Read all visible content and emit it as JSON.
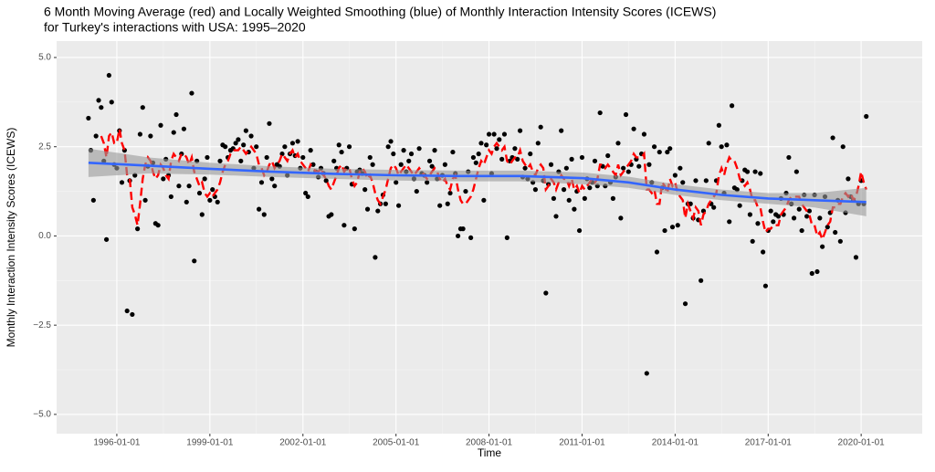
{
  "chart_data": {
    "type": "scatter",
    "title": "6 Month Moving Average (red) and Locally Weighted Smoothing (blue) of Monthly Interaction Intensity Scores (ICEWS)",
    "subtitle": "for Turkey's interactions with USA: 1995–2020",
    "x_label": "Time",
    "y_label": "Monthly Interaction Intensity Scores (ICEWS)",
    "grid": true,
    "xlim": [
      "1994-01-22",
      "2021-12-20"
    ],
    "xticks": [
      "1996-01-01",
      "1999-01-01",
      "2002-01-01",
      "2005-01-01",
      "2008-01-01",
      "2011-01-01",
      "2014-01-01",
      "2017-01-01",
      "2020-01-01"
    ],
    "ylim": [
      -5.54,
      5.46
    ],
    "yticks": [
      {
        "value": -5,
        "label": "−5.0"
      },
      {
        "value": -2.5,
        "label": "−2.5"
      },
      {
        "value": 0,
        "label": "0.0"
      },
      {
        "value": 2.5,
        "label": "2.5"
      },
      {
        "value": 5,
        "label": "5.0"
      }
    ],
    "x": [
      "1995-02-01",
      "1995-03-01",
      "1995-04-01",
      "1995-05-01",
      "1995-06-01",
      "1995-07-01",
      "1995-08-01",
      "1995-09-01",
      "1995-10-01",
      "1995-11-01",
      "1995-12-01",
      "1996-01-01",
      "1996-02-01",
      "1996-03-01",
      "1996-04-01",
      "1996-05-01",
      "1996-06-01",
      "1996-07-01",
      "1996-08-01",
      "1996-09-01",
      "1996-10-01",
      "1996-11-01",
      "1996-12-01",
      "1997-01-01",
      "1997-02-01",
      "1997-03-01",
      "1997-04-01",
      "1997-05-01",
      "1997-06-01",
      "1997-07-01",
      "1997-08-01",
      "1997-09-01",
      "1997-10-01",
      "1997-11-01",
      "1997-12-01",
      "1998-01-01",
      "1998-02-01",
      "1998-03-01",
      "1998-04-01",
      "1998-05-01",
      "1998-06-01",
      "1998-07-01",
      "1998-08-01",
      "1998-09-01",
      "1998-10-01",
      "1998-11-01",
      "1998-12-01",
      "1999-01-01",
      "1999-02-01",
      "1999-03-01",
      "1999-04-01",
      "1999-05-01",
      "1999-06-01",
      "1999-07-01",
      "1999-08-01",
      "1999-09-01",
      "1999-10-01",
      "1999-11-01",
      "1999-12-01",
      "2000-01-01",
      "2000-02-01",
      "2000-03-01",
      "2000-04-01",
      "2000-05-01",
      "2000-06-01",
      "2000-07-01",
      "2000-08-01",
      "2000-09-01",
      "2000-10-01",
      "2000-11-01",
      "2000-12-01",
      "2001-01-01",
      "2001-02-01",
      "2001-03-01",
      "2001-04-01",
      "2001-05-01",
      "2001-06-01",
      "2001-07-01",
      "2001-08-01",
      "2001-09-01",
      "2001-10-01",
      "2001-11-01",
      "2001-12-01",
      "2002-01-01",
      "2002-02-01",
      "2002-03-01",
      "2002-04-01",
      "2002-05-01",
      "2002-06-01",
      "2002-07-01",
      "2002-08-01",
      "2002-09-01",
      "2002-10-01",
      "2002-11-01",
      "2002-12-01",
      "2003-01-01",
      "2003-02-01",
      "2003-03-01",
      "2003-04-01",
      "2003-05-01",
      "2003-06-01",
      "2003-07-01",
      "2003-08-01",
      "2003-09-01",
      "2003-10-01",
      "2003-11-01",
      "2003-12-01",
      "2004-01-01",
      "2004-02-01",
      "2004-03-01",
      "2004-04-01",
      "2004-05-01",
      "2004-06-01",
      "2004-07-01",
      "2004-08-01",
      "2004-09-01",
      "2004-10-01",
      "2004-11-01",
      "2004-12-01",
      "2005-01-01",
      "2005-02-01",
      "2005-03-01",
      "2005-04-01",
      "2005-05-01",
      "2005-06-01",
      "2005-07-01",
      "2005-08-01",
      "2005-09-01",
      "2005-10-01",
      "2005-11-01",
      "2005-12-01",
      "2006-01-01",
      "2006-02-01",
      "2006-03-01",
      "2006-04-01",
      "2006-05-01",
      "2006-06-01",
      "2006-07-01",
      "2006-08-01",
      "2006-09-01",
      "2006-10-01",
      "2006-11-01",
      "2006-12-01",
      "2007-01-01",
      "2007-02-01",
      "2007-03-01",
      "2007-04-01",
      "2007-05-01",
      "2007-06-01",
      "2007-07-01",
      "2007-08-01",
      "2007-09-01",
      "2007-10-01",
      "2007-11-01",
      "2007-12-01",
      "2008-01-01",
      "2008-02-01",
      "2008-03-01",
      "2008-04-01",
      "2008-05-01",
      "2008-06-01",
      "2008-07-01",
      "2008-08-01",
      "2008-09-01",
      "2008-10-01",
      "2008-11-01",
      "2008-12-01",
      "2009-01-01",
      "2009-02-01",
      "2009-03-01",
      "2009-04-01",
      "2009-05-01",
      "2009-06-01",
      "2009-07-01",
      "2009-08-01",
      "2009-09-01",
      "2009-10-01",
      "2009-11-01",
      "2009-12-01",
      "2010-01-01",
      "2010-02-01",
      "2010-03-01",
      "2010-04-01",
      "2010-05-01",
      "2010-06-01",
      "2010-07-01",
      "2010-08-01",
      "2010-09-01",
      "2010-10-01",
      "2010-11-01",
      "2010-12-01",
      "2011-01-01",
      "2011-02-01",
      "2011-03-01",
      "2011-04-01",
      "2011-05-01",
      "2011-06-01",
      "2011-07-01",
      "2011-08-01",
      "2011-09-01",
      "2011-10-01",
      "2011-11-01",
      "2011-12-01",
      "2012-01-01",
      "2012-02-01",
      "2012-03-01",
      "2012-04-01",
      "2012-05-01",
      "2012-06-01",
      "2012-07-01",
      "2012-08-01",
      "2012-09-01",
      "2012-10-01",
      "2012-11-01",
      "2012-12-01",
      "2013-01-01",
      "2013-02-01",
      "2013-03-01",
      "2013-04-01",
      "2013-05-01",
      "2013-06-01",
      "2013-07-01",
      "2013-08-01",
      "2013-09-01",
      "2013-10-01",
      "2013-11-01",
      "2013-12-01",
      "2014-01-01",
      "2014-02-01",
      "2014-03-01",
      "2014-04-01",
      "2014-05-01",
      "2014-06-01",
      "2014-07-01",
      "2014-08-01",
      "2014-09-01",
      "2014-10-01",
      "2014-11-01",
      "2014-12-01",
      "2015-01-01",
      "2015-02-01",
      "2015-03-01",
      "2015-04-01",
      "2015-05-01",
      "2015-06-01",
      "2015-07-01",
      "2015-08-01",
      "2015-09-01",
      "2015-10-01",
      "2015-11-01",
      "2015-12-01",
      "2016-01-01",
      "2016-02-01",
      "2016-03-01",
      "2016-04-01",
      "2016-05-01",
      "2016-06-01",
      "2016-07-01",
      "2016-08-01",
      "2016-09-01",
      "2016-10-01",
      "2016-11-01",
      "2016-12-01",
      "2017-01-01",
      "2017-02-01",
      "2017-03-01",
      "2017-04-01",
      "2017-05-01",
      "2017-06-01",
      "2017-07-01",
      "2017-08-01",
      "2017-09-01",
      "2017-10-01",
      "2017-11-01",
      "2017-12-01",
      "2018-01-01",
      "2018-02-01",
      "2018-03-01",
      "2018-04-01",
      "2018-05-01",
      "2018-06-01",
      "2018-07-01",
      "2018-08-01",
      "2018-09-01",
      "2018-10-01",
      "2018-11-01",
      "2018-12-01",
      "2019-01-01",
      "2019-02-01",
      "2019-03-01",
      "2019-04-01",
      "2019-05-01",
      "2019-06-01",
      "2019-07-01",
      "2019-08-01",
      "2019-09-01",
      "2019-10-01",
      "2019-11-01",
      "2019-12-01",
      "2020-01-01",
      "2020-02-01",
      "2020-03-01"
    ],
    "points": {
      "color": "#000000",
      "values": [
        3.3,
        2.4,
        1.0,
        2.8,
        3.8,
        3.6,
        2.1,
        -0.1,
        4.5,
        3.75,
        2.0,
        1.9,
        2.95,
        1.5,
        2.4,
        -2.1,
        1.55,
        -2.2,
        1.7,
        0.2,
        2.85,
        3.6,
        1.0,
        1.95,
        2.8,
        2.05,
        0.35,
        0.3,
        3.1,
        1.6,
        2.15,
        1.7,
        1.1,
        2.9,
        3.4,
        1.4,
        2.3,
        3.0,
        0.95,
        1.4,
        4.0,
        -0.7,
        2.1,
        1.2,
        0.6,
        1.6,
        2.2,
        1.0,
        1.3,
        1.1,
        0.95,
        2.1,
        2.55,
        2.5,
        2.2,
        2.4,
        2.45,
        2.6,
        2.7,
        2.1,
        2.55,
        2.95,
        2.35,
        2.8,
        1.9,
        2.5,
        0.75,
        1.5,
        0.6,
        2.2,
        3.15,
        1.6,
        1.4,
        2.0,
        1.95,
        2.3,
        2.5,
        1.7,
        2.3,
        2.6,
        2.25,
        2.65,
        1.9,
        2.2,
        1.2,
        1.1,
        2.4,
        2.0,
        1.8,
        1.65,
        1.9,
        1.75,
        1.55,
        0.55,
        0.6,
        2.1,
        1.9,
        2.55,
        2.35,
        0.3,
        1.9,
        2.5,
        1.45,
        0.2,
        1.8,
        1.85,
        1.75,
        1.3,
        0.75,
        2.2,
        2.0,
        -0.6,
        0.7,
        0.9,
        1.15,
        0.9,
        2.5,
        2.65,
        2.3,
        1.5,
        0.85,
        2.0,
        2.4,
        1.8,
        2.1,
        2.3,
        1.6,
        1.25,
        2.45,
        1.75,
        1.7,
        1.5,
        2.1,
        1.95,
        2.4,
        1.6,
        0.85,
        1.7,
        2.0,
        0.9,
        1.2,
        2.35,
        1.75,
        0.0,
        0.2,
        0.2,
        1.25,
        1.8,
        -0.05,
        2.2,
        2.05,
        2.3,
        2.6,
        1.0,
        2.55,
        2.85,
        1.75,
        2.85,
        2.45,
        2.7,
        2.15,
        2.85,
        -0.05,
        2.1,
        2.2,
        2.45,
        2.15,
        2.95,
        1.65,
        1.9,
        1.6,
        2.3,
        1.5,
        1.3,
        2.6,
        3.05,
        1.55,
        -1.6,
        1.45,
        2.0,
        1.05,
        0.55,
        1.8,
        2.95,
        1.3,
        1.9,
        1.0,
        2.15,
        0.75,
        1.25,
        0.15,
        2.2,
        1.05,
        1.6,
        1.35,
        1.5,
        2.1,
        1.4,
        3.45,
        1.95,
        1.4,
        2.25,
        1.5,
        1.05,
        1.65,
        2.6,
        0.5,
        1.9,
        3.4,
        1.8,
        2.0,
        3.0,
        2.15,
        1.95,
        2.3,
        2.85,
        -3.85,
        2.0,
        1.5,
        2.5,
        -0.45,
        2.35,
        1.35,
        0.15,
        2.35,
        2.45,
        0.25,
        1.7,
        0.3,
        1.9,
        1.5,
        -1.9,
        0.9,
        0.9,
        0.5,
        1.55,
        0.45,
        -1.25,
        0.7,
        1.55,
        2.6,
        0.9,
        0.8,
        1.55,
        3.1,
        2.5,
        1.2,
        2.55,
        0.4,
        3.65,
        1.35,
        1.3,
        0.85,
        1.55,
        1.85,
        1.8,
        0.6,
        -0.15,
        1.8,
        0.35,
        1.75,
        -0.45,
        -1.4,
        0.15,
        0.7,
        0.4,
        0.6,
        0.55,
        1.05,
        0.6,
        1.2,
        2.2,
        0.9,
        0.5,
        1.8,
        0.75,
        0.15,
        1.15,
        0.55,
        0.7,
        -1.05,
        1.15,
        -1.0,
        0.5,
        -0.3,
        1.1,
        0.25,
        0.65,
        2.75,
        0.1,
        1.0,
        -0.15,
        2.5,
        0.65,
        1.6,
        1.1,
        1.0,
        -0.6,
        0.9,
        1.55,
        0.9,
        3.35
      ]
    },
    "moving_average": {
      "color": "#ff0000",
      "dashed": true,
      "values": [
        null,
        null,
        null,
        null,
        null,
        2.8,
        2.6,
        2.2,
        2.8,
        2.9,
        2.6,
        2.6,
        3.0,
        2.6,
        2.4,
        1.7,
        1.6,
        0.8,
        0.6,
        0.3,
        0.9,
        1.6,
        2.0,
        2.2,
        2.1,
        1.8,
        1.6,
        1.7,
        2.0,
        1.9,
        1.7,
        1.6,
        2.1,
        2.3,
        2.2,
        2.1,
        2.3,
        2.3,
        2.2,
        2.0,
        2.2,
        1.8,
        1.6,
        1.4,
        1.5,
        1.2,
        1.1,
        1.2,
        1.1,
        1.2,
        1.3,
        1.5,
        1.8,
        2.0,
        2.1,
        2.3,
        2.4,
        2.4,
        2.4,
        2.5,
        2.4,
        2.3,
        2.4,
        2.5,
        2.4,
        2.3,
        2.0,
        1.9,
        1.7,
        1.8,
        2.0,
        2.1,
        1.9,
        2.0,
        2.1,
        2.3,
        2.2,
        2.1,
        2.3,
        2.4,
        2.2,
        2.3,
        2.1,
        2.0,
        1.9,
        1.8,
        2.0,
        1.9,
        1.8,
        1.8,
        1.9,
        1.7,
        1.6,
        1.4,
        1.3,
        1.5,
        1.7,
        1.9,
        2.0,
        1.8,
        1.9,
        1.9,
        1.6,
        1.4,
        1.5,
        1.8,
        1.9,
        1.8,
        1.6,
        1.7,
        1.5,
        1.2,
        1.0,
        0.9,
        1.1,
        1.3,
        1.6,
        1.9,
        2.0,
        1.9,
        1.7,
        1.8,
        1.9,
        2.0,
        1.9,
        1.8,
        1.7,
        1.8,
        1.9,
        1.8,
        1.7,
        1.6,
        1.7,
        1.8,
        1.9,
        1.8,
        1.6,
        1.5,
        1.6,
        1.4,
        1.3,
        1.6,
        1.7,
        1.3,
        1.0,
        0.9,
        0.9,
        1.0,
        1.1,
        1.3,
        1.6,
        1.9,
        2.1,
        2.0,
        2.2,
        2.4,
        2.3,
        2.5,
        2.6,
        2.5,
        2.4,
        2.5,
        2.1,
        2.0,
        2.1,
        2.2,
        2.2,
        2.4,
        2.1,
        2.0,
        1.9,
        2.0,
        1.8,
        1.7,
        1.9,
        2.0,
        1.9,
        1.3,
        1.4,
        1.6,
        1.5,
        1.3,
        1.5,
        1.7,
        1.6,
        1.6,
        1.4,
        1.6,
        1.3,
        1.4,
        1.2,
        1.4,
        1.3,
        1.4,
        1.5,
        1.6,
        1.5,
        1.6,
        2.0,
        2.0,
        1.9,
        2.0,
        1.9,
        1.8,
        1.7,
        2.0,
        1.7,
        1.8,
        1.9,
        2.0,
        2.1,
        2.3,
        2.2,
        2.2,
        2.2,
        2.3,
        1.3,
        1.3,
        1.2,
        1.3,
        0.9,
        0.9,
        1.5,
        1.4,
        1.2,
        1.6,
        1.4,
        1.5,
        1.2,
        1.1,
        1.0,
        0.5,
        0.9,
        0.7,
        0.5,
        0.8,
        0.7,
        0.3,
        0.6,
        0.7,
        0.9,
        1.0,
        1.1,
        1.2,
        1.7,
        1.9,
        1.7,
        2.0,
        2.2,
        2.1,
        2.1,
        1.9,
        1.6,
        1.5,
        1.4,
        1.5,
        1.3,
        1.0,
        1.0,
        0.8,
        0.8,
        0.4,
        0.1,
        0.2,
        0.2,
        0.3,
        0.3,
        0.3,
        0.6,
        0.7,
        0.8,
        1.0,
        1.1,
        1.1,
        1.1,
        1.1,
        0.9,
        0.8,
        0.7,
        0.6,
        0.3,
        0.3,
        0.0,
        0.1,
        -0.1,
        0.1,
        0.3,
        0.4,
        0.8,
        0.8,
        0.9,
        0.9,
        1.1,
        1.2,
        1.1,
        1.2,
        1.0,
        1.1,
        1.4,
        1.8,
        1.5,
        1.3
      ]
    },
    "smooth": {
      "color": "#3366ff",
      "band_color": "#999999",
      "x": [
        "1995-02-01",
        "1997-01-01",
        "1999-01-01",
        "2001-01-01",
        "2003-01-01",
        "2005-01-01",
        "2007-01-01",
        "2009-01-01",
        "2011-01-01",
        "2012-07-01",
        "2014-01-01",
        "2015-07-01",
        "2017-01-01",
        "2018-07-01",
        "2020-03-01"
      ],
      "values": [
        2.05,
        1.97,
        1.88,
        1.8,
        1.74,
        1.7,
        1.68,
        1.68,
        1.62,
        1.5,
        1.3,
        1.15,
        1.05,
        1.0,
        0.95
      ],
      "lower": [
        1.65,
        1.75,
        1.72,
        1.65,
        1.6,
        1.55,
        1.53,
        1.53,
        1.45,
        1.35,
        1.15,
        1.0,
        0.9,
        0.8,
        0.55
      ],
      "upper": [
        2.45,
        2.2,
        2.05,
        1.95,
        1.88,
        1.85,
        1.83,
        1.83,
        1.78,
        1.66,
        1.45,
        1.3,
        1.2,
        1.2,
        1.35
      ]
    }
  }
}
